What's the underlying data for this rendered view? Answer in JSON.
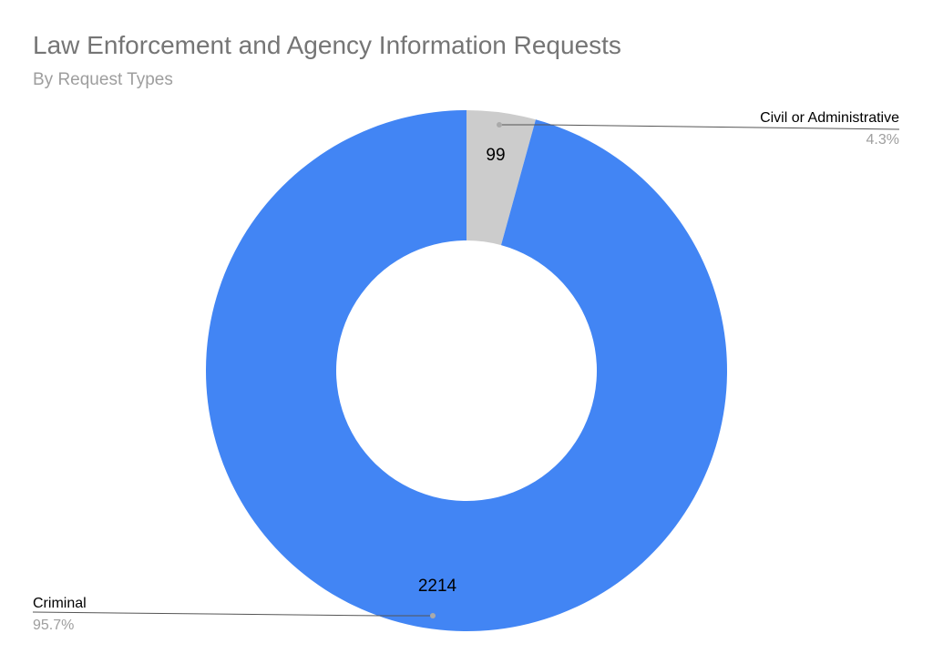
{
  "chart_data": {
    "type": "pie",
    "variant": "donut",
    "title": "Law Enforcement and Agency Information Requests",
    "subtitle": "By Request Types",
    "slices": [
      {
        "name": "Civil or Administrative",
        "value": 99,
        "percent_label": "4.3%",
        "value_label": "99",
        "color": "#cccccc"
      },
      {
        "name": "Criminal",
        "value": 2214,
        "percent_label": "95.7%",
        "value_label": "2214",
        "color": "#4285f4"
      }
    ],
    "legend_position": "outside-labels"
  }
}
